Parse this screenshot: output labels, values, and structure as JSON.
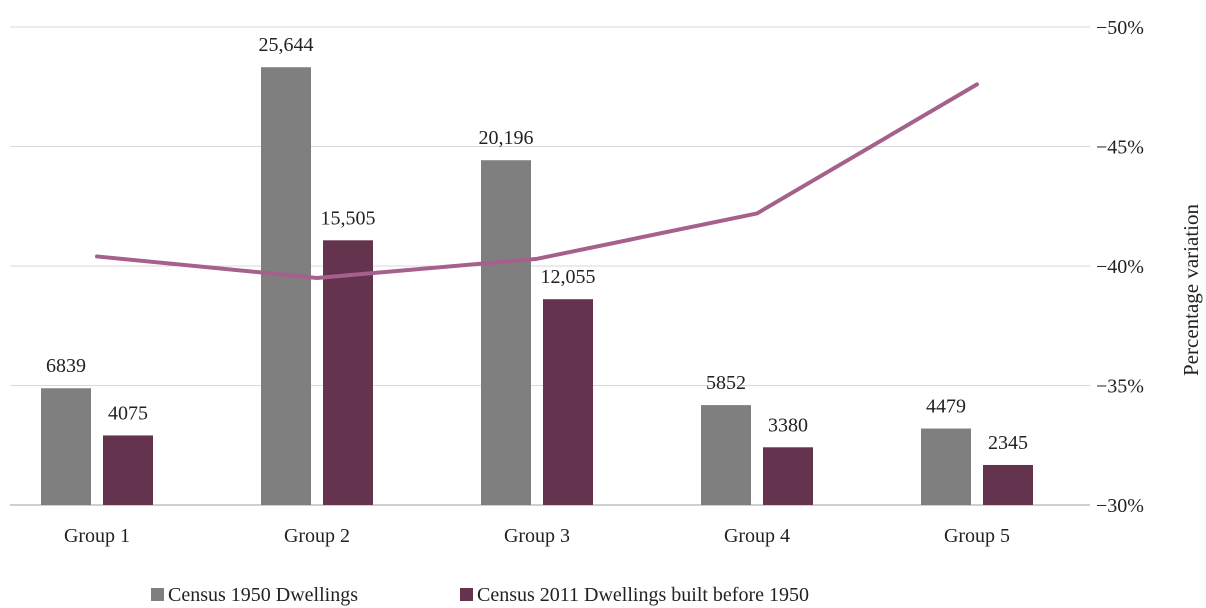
{
  "chart_data": {
    "type": "bar",
    "categories": [
      "Group 1",
      "Group 2",
      "Group 3",
      "Group 4",
      "Group 5"
    ],
    "series": [
      {
        "name": "Census 1950 Dwellings",
        "kind": "bar",
        "axis": "left",
        "color": "#7f7f7f",
        "values": [
          6839,
          25644,
          20196,
          5852,
          4479
        ],
        "labels": [
          "6839",
          "25,644",
          "20,196",
          "5852",
          "4479"
        ]
      },
      {
        "name": "Census 2011 Dwellings built before 1950",
        "kind": "bar",
        "axis": "left",
        "color": "#64344f",
        "values": [
          4075,
          15505,
          12055,
          3380,
          2345
        ],
        "labels": [
          "4075",
          "15,505",
          "12,055",
          "3380",
          "2345"
        ]
      },
      {
        "name": "",
        "kind": "line",
        "axis": "right",
        "color": "#a5618c",
        "values": [
          -40.4,
          -39.5,
          -40.3,
          -42.2,
          -47.6
        ]
      }
    ],
    "y_left": {
      "lim": [
        0,
        28000
      ],
      "visible": false
    },
    "y_right": {
      "label": "Percentage variation",
      "lim": [
        -30,
        -50
      ],
      "ticks": [
        -30,
        -35,
        -40,
        -45,
        -50
      ],
      "tick_labels": [
        "−30%",
        "−35%",
        "−40%",
        "−45%",
        "−50%"
      ]
    },
    "grid": true,
    "legend": "bottom"
  }
}
